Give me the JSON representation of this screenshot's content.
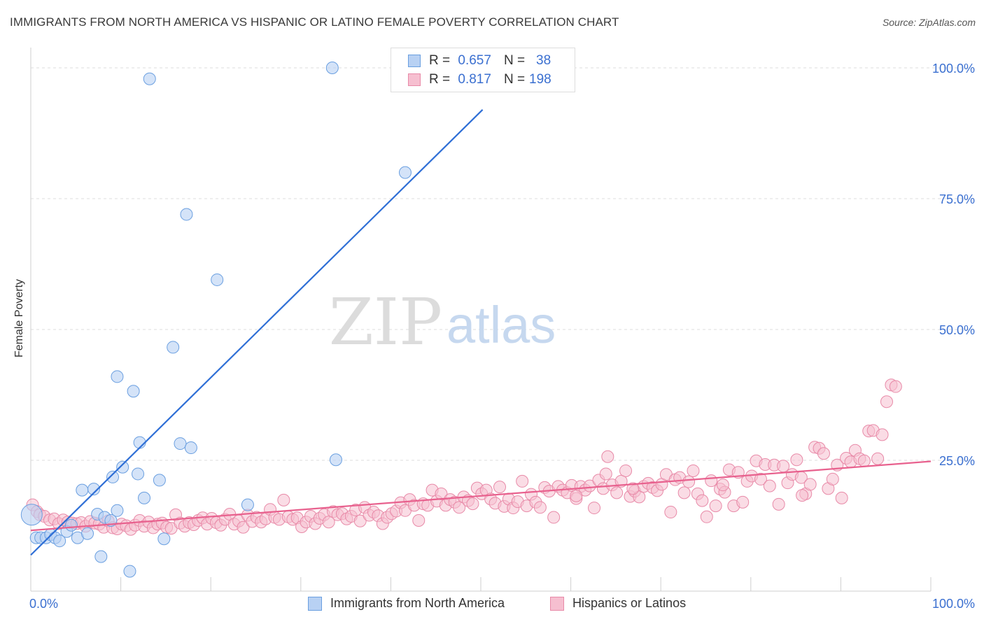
{
  "title": "IMMIGRANTS FROM NORTH AMERICA VS HISPANIC OR LATINO FEMALE POVERTY CORRELATION CHART",
  "source": "Source: ZipAtlas.com",
  "watermark": {
    "zip": "ZIP",
    "atlas": "atlas"
  },
  "colors": {
    "blue_fill": "#b8d1f3",
    "blue_stroke": "#6a9fe0",
    "blue_line": "#2f6fd6",
    "pink_fill": "#f6bfd0",
    "pink_stroke": "#e88aa8",
    "pink_line": "#e8618e",
    "axis_label": "#3a6fd0"
  },
  "legend": {
    "r_label": "R =",
    "n_label": "N =",
    "blue": {
      "r": "0.657",
      "n": "38"
    },
    "pink": {
      "r": "0.817",
      "n": "198"
    }
  },
  "chart_data": {
    "type": "scatter",
    "title": "IMMIGRANTS FROM NORTH AMERICA VS HISPANIC OR LATINO FEMALE POVERTY CORRELATION CHART",
    "xlabel": "",
    "ylabel": "Female Poverty",
    "xlim": [
      0,
      100
    ],
    "ylim": [
      0,
      100
    ],
    "x_tick_labels": [
      "0.0%",
      "100.0%"
    ],
    "y_ticks": [
      25,
      50,
      75,
      100
    ],
    "y_tick_labels": [
      "25.0%",
      "50.0%",
      "75.0%",
      "100.0%"
    ],
    "grid": true,
    "legend_position": "top-center",
    "series": [
      {
        "name": "Immigrants from North America",
        "r": 0.657,
        "n": 38,
        "trend": [
          [
            0,
            6.9
          ],
          [
            50.2,
            92.0
          ]
        ],
        "points": [
          [
            0.1,
            14.6
          ],
          [
            0.6,
            10.2
          ],
          [
            1.1,
            10.2
          ],
          [
            1.7,
            10.2
          ],
          [
            2.2,
            10.8
          ],
          [
            2.7,
            10.2
          ],
          [
            3.2,
            9.6
          ],
          [
            4.0,
            11.4
          ],
          [
            4.5,
            12.6
          ],
          [
            5.2,
            10.2
          ],
          [
            5.7,
            19.3
          ],
          [
            6.3,
            11.0
          ],
          [
            7.0,
            19.5
          ],
          [
            7.4,
            14.7
          ],
          [
            7.8,
            6.6
          ],
          [
            8.2,
            14.1
          ],
          [
            8.9,
            13.5
          ],
          [
            9.1,
            21.8
          ],
          [
            9.6,
            15.4
          ],
          [
            9.6,
            41.0
          ],
          [
            10.2,
            23.7
          ],
          [
            11.0,
            3.8
          ],
          [
            11.4,
            38.2
          ],
          [
            11.9,
            22.4
          ],
          [
            12.1,
            28.4
          ],
          [
            12.6,
            17.8
          ],
          [
            13.2,
            97.9
          ],
          [
            14.3,
            21.2
          ],
          [
            14.8,
            10.0
          ],
          [
            15.8,
            46.6
          ],
          [
            16.6,
            28.2
          ],
          [
            17.3,
            72.0
          ],
          [
            17.8,
            27.4
          ],
          [
            20.7,
            59.5
          ],
          [
            24.1,
            16.5
          ],
          [
            33.5,
            100.0
          ],
          [
            33.9,
            25.1
          ],
          [
            41.6,
            80.0
          ]
        ]
      },
      {
        "name": "Hispanics or Latinos",
        "r": 0.817,
        "n": 198,
        "trend": [
          [
            0,
            11.6
          ],
          [
            100,
            24.8
          ]
        ],
        "points": [
          [
            0.2,
            16.5
          ],
          [
            0.7,
            15.2
          ],
          [
            1.0,
            14.6
          ],
          [
            1.5,
            14.3
          ],
          [
            2.1,
            13.6
          ],
          [
            2.6,
            13.8
          ],
          [
            3.1,
            12.9
          ],
          [
            3.6,
            13.6
          ],
          [
            4.1,
            13.2
          ],
          [
            4.6,
            13.0
          ],
          [
            5.1,
            12.9
          ],
          [
            5.6,
            13.1
          ],
          [
            6.1,
            12.4
          ],
          [
            6.6,
            13.3
          ],
          [
            7.1,
            13.0
          ],
          [
            7.6,
            12.8
          ],
          [
            8.1,
            12.2
          ],
          [
            8.6,
            13.4
          ],
          [
            9.1,
            12.1
          ],
          [
            9.6,
            11.9
          ],
          [
            10.1,
            12.8
          ],
          [
            10.6,
            12.5
          ],
          [
            11.1,
            11.8
          ],
          [
            11.6,
            12.6
          ],
          [
            12.1,
            13.5
          ],
          [
            12.6,
            12.4
          ],
          [
            13.1,
            13.2
          ],
          [
            13.6,
            12.1
          ],
          [
            14.1,
            12.8
          ],
          [
            14.6,
            13.0
          ],
          [
            15.1,
            12.2
          ],
          [
            15.6,
            12.0
          ],
          [
            16.1,
            14.6
          ],
          [
            16.6,
            13.0
          ],
          [
            17.1,
            12.4
          ],
          [
            17.6,
            13.1
          ],
          [
            18.1,
            12.7
          ],
          [
            18.6,
            13.5
          ],
          [
            19.1,
            14.0
          ],
          [
            19.6,
            12.8
          ],
          [
            20.1,
            13.9
          ],
          [
            20.6,
            13.1
          ],
          [
            21.1,
            12.6
          ],
          [
            21.6,
            13.7
          ],
          [
            22.1,
            14.7
          ],
          [
            22.6,
            12.8
          ],
          [
            23.1,
            13.4
          ],
          [
            23.6,
            12.2
          ],
          [
            24.1,
            14.5
          ],
          [
            24.6,
            13.3
          ],
          [
            25.1,
            14.1
          ],
          [
            25.6,
            13.2
          ],
          [
            26.1,
            13.8
          ],
          [
            26.6,
            15.6
          ],
          [
            27.1,
            14.1
          ],
          [
            27.6,
            13.7
          ],
          [
            28.1,
            17.4
          ],
          [
            28.6,
            14.2
          ],
          [
            29.1,
            13.7
          ],
          [
            29.6,
            14.0
          ],
          [
            30.1,
            12.3
          ],
          [
            30.6,
            13.2
          ],
          [
            31.1,
            14.3
          ],
          [
            31.6,
            12.9
          ],
          [
            32.1,
            13.9
          ],
          [
            32.6,
            14.6
          ],
          [
            33.1,
            13.2
          ],
          [
            33.6,
            15.2
          ],
          [
            34.1,
            14.6
          ],
          [
            34.6,
            14.8
          ],
          [
            35.1,
            13.8
          ],
          [
            35.6,
            14.3
          ],
          [
            36.1,
            15.5
          ],
          [
            36.6,
            13.4
          ],
          [
            37.1,
            16.0
          ],
          [
            37.6,
            14.5
          ],
          [
            38.1,
            15.1
          ],
          [
            38.6,
            14.4
          ],
          [
            39.1,
            12.9
          ],
          [
            39.6,
            14.1
          ],
          [
            40.1,
            14.8
          ],
          [
            40.6,
            15.3
          ],
          [
            41.1,
            16.9
          ],
          [
            41.6,
            15.4
          ],
          [
            42.1,
            17.5
          ],
          [
            42.6,
            16.4
          ],
          [
            43.1,
            13.5
          ],
          [
            43.6,
            16.7
          ],
          [
            44.1,
            16.4
          ],
          [
            44.6,
            19.3
          ],
          [
            45.1,
            17.2
          ],
          [
            45.6,
            18.6
          ],
          [
            46.1,
            16.4
          ],
          [
            46.6,
            17.5
          ],
          [
            47.1,
            17.0
          ],
          [
            47.6,
            16.0
          ],
          [
            48.1,
            18.0
          ],
          [
            48.6,
            17.3
          ],
          [
            49.1,
            16.7
          ],
          [
            49.6,
            19.7
          ],
          [
            50.1,
            18.6
          ],
          [
            50.6,
            19.3
          ],
          [
            51.1,
            17.6
          ],
          [
            51.6,
            16.8
          ],
          [
            52.1,
            19.9
          ],
          [
            52.6,
            16.2
          ],
          [
            53.1,
            17.6
          ],
          [
            53.6,
            15.9
          ],
          [
            54.1,
            17.1
          ],
          [
            54.6,
            21.0
          ],
          [
            55.1,
            16.3
          ],
          [
            55.6,
            18.5
          ],
          [
            56.1,
            17.0
          ],
          [
            56.6,
            16.0
          ],
          [
            57.1,
            19.8
          ],
          [
            57.6,
            19.1
          ],
          [
            58.1,
            14.1
          ],
          [
            58.6,
            20.0
          ],
          [
            59.1,
            19.3
          ],
          [
            59.6,
            18.8
          ],
          [
            60.1,
            20.2
          ],
          [
            60.6,
            17.7
          ],
          [
            61.1,
            20.0
          ],
          [
            61.6,
            19.3
          ],
          [
            62.1,
            20.1
          ],
          [
            62.6,
            15.9
          ],
          [
            63.1,
            21.2
          ],
          [
            63.6,
            19.6
          ],
          [
            64.1,
            25.7
          ],
          [
            64.6,
            20.3
          ],
          [
            65.1,
            18.8
          ],
          [
            65.6,
            21.0
          ],
          [
            66.1,
            23.0
          ],
          [
            66.6,
            18.1
          ],
          [
            67.1,
            19.1
          ],
          [
            67.6,
            18.0
          ],
          [
            68.1,
            20.0
          ],
          [
            68.6,
            20.6
          ],
          [
            69.1,
            19.8
          ],
          [
            69.6,
            19.2
          ],
          [
            70.1,
            20.4
          ],
          [
            70.6,
            22.3
          ],
          [
            71.1,
            15.1
          ],
          [
            71.6,
            21.3
          ],
          [
            72.1,
            21.7
          ],
          [
            72.6,
            18.8
          ],
          [
            73.1,
            20.9
          ],
          [
            73.6,
            23.0
          ],
          [
            74.1,
            18.6
          ],
          [
            74.6,
            17.3
          ],
          [
            75.1,
            14.2
          ],
          [
            75.6,
            21.1
          ],
          [
            76.1,
            16.3
          ],
          [
            76.6,
            19.5
          ],
          [
            77.1,
            18.9
          ],
          [
            77.6,
            23.2
          ],
          [
            78.1,
            16.3
          ],
          [
            78.6,
            22.7
          ],
          [
            79.1,
            17.0
          ],
          [
            79.6,
            21.0
          ],
          [
            80.1,
            22.0
          ],
          [
            80.6,
            24.9
          ],
          [
            81.1,
            21.4
          ],
          [
            81.6,
            24.2
          ],
          [
            82.1,
            20.1
          ],
          [
            82.6,
            24.1
          ],
          [
            83.1,
            16.6
          ],
          [
            83.6,
            23.9
          ],
          [
            84.1,
            20.7
          ],
          [
            84.6,
            22.3
          ],
          [
            85.1,
            25.1
          ],
          [
            85.6,
            21.7
          ],
          [
            86.1,
            18.6
          ],
          [
            86.6,
            20.4
          ],
          [
            87.1,
            27.5
          ],
          [
            87.6,
            27.3
          ],
          [
            88.1,
            26.3
          ],
          [
            88.6,
            19.6
          ],
          [
            89.1,
            21.4
          ],
          [
            89.6,
            24.1
          ],
          [
            90.1,
            17.8
          ],
          [
            90.6,
            25.4
          ],
          [
            91.1,
            24.7
          ],
          [
            91.6,
            26.9
          ],
          [
            92.1,
            25.3
          ],
          [
            92.6,
            24.9
          ],
          [
            93.1,
            30.6
          ],
          [
            93.6,
            30.7
          ],
          [
            94.1,
            25.3
          ],
          [
            94.6,
            29.9
          ],
          [
            95.1,
            36.2
          ],
          [
            95.6,
            39.4
          ],
          [
            96.1,
            39.1
          ],
          [
            60.6,
            18.2
          ],
          [
            63.9,
            22.4
          ],
          [
            66.9,
            19.6
          ],
          [
            76.9,
            20.3
          ],
          [
            85.7,
            18.3
          ]
        ]
      }
    ]
  },
  "bottom_legend": {
    "blue_label": "Immigrants from North America",
    "pink_label": "Hispanics or Latinos"
  }
}
